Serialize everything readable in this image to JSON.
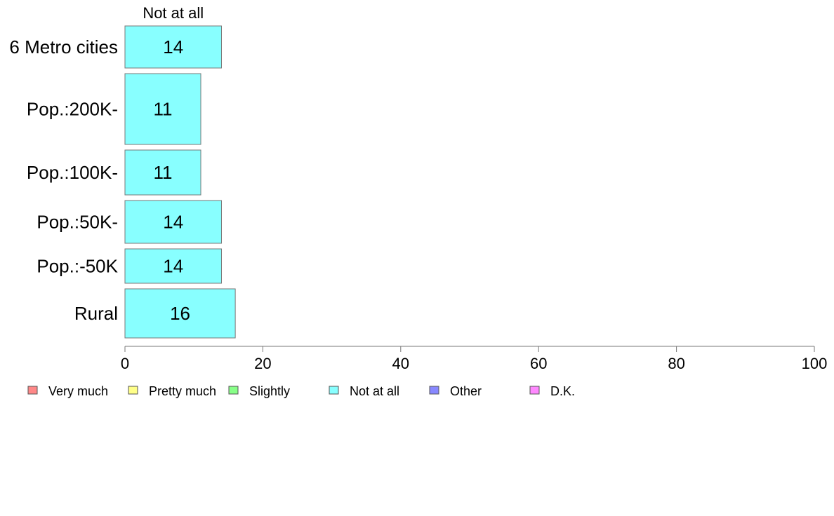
{
  "chart_data": {
    "type": "bar",
    "orientation": "horizontal",
    "categories": [
      "6 Metro cities",
      "Pop.:200K-",
      "Pop.:100K-",
      "Pop.:50K-",
      "Pop.:-50K",
      "Rural"
    ],
    "series": [
      {
        "name": "Not at all",
        "values": [
          14,
          11,
          11,
          14,
          14,
          16
        ],
        "color": "#88ffff"
      }
    ],
    "bar_labels": [
      "14",
      "11",
      "11",
      "14",
      "14",
      "16"
    ],
    "column_header": "Not at all",
    "xlim": [
      0,
      100
    ],
    "x_ticks": [
      0,
      20,
      40,
      60,
      80,
      100
    ],
    "x_tick_labels": [
      "0",
      "20",
      "40",
      "60",
      "80",
      "100"
    ],
    "grid": false,
    "legend_position": "bottom",
    "legend": [
      {
        "label": "Very much",
        "color": "#ff8888"
      },
      {
        "label": "Pretty much",
        "color": "#ffff88"
      },
      {
        "label": "Slightly",
        "color": "#88ff88"
      },
      {
        "label": "Not at all",
        "color": "#88ffff"
      },
      {
        "label": "Other",
        "color": "#8888ff"
      },
      {
        "label": "D.K.",
        "color": "#ff88ff"
      }
    ],
    "bar_outline_color": "#777777",
    "axis_color": "#777777"
  }
}
